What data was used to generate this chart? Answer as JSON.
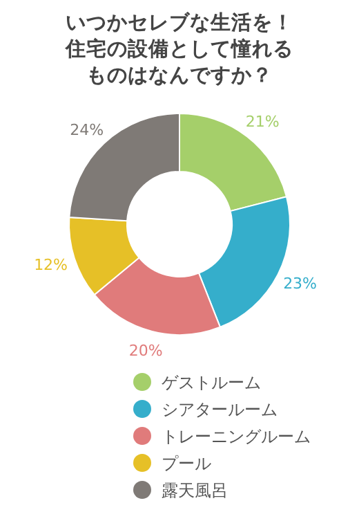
{
  "chart_data": {
    "type": "donut",
    "title": "いつかセレブな生活を！住宅の設備として憧れるものはなんですか？",
    "categories": [
      "ゲストルーム",
      "シアタールーム",
      "トレーニングルーム",
      "プール",
      "露天風呂"
    ],
    "values": [
      21,
      23,
      20,
      12,
      24
    ],
    "colors": [
      "#a5cf6a",
      "#35aecb",
      "#e07b7b",
      "#e6c027",
      "#7f7a76"
    ],
    "value_labels": [
      "21%",
      "23%",
      "20%",
      "12%",
      "24%"
    ],
    "legend": "bottom"
  }
}
